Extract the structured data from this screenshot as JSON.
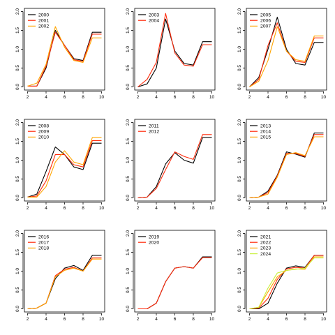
{
  "colors": {
    "black": "#000000",
    "red": "#ff2a0a",
    "orange": "#ffa500",
    "yellow": "#f0f000",
    "yellowgreen": "#c8f03c"
  },
  "chart_data": [
    {
      "type": "line",
      "x": [
        2,
        3,
        4,
        5,
        6,
        7,
        8,
        9,
        10
      ],
      "xticks": [
        2,
        4,
        6,
        8,
        10
      ],
      "yticks": [
        "0.0",
        "0.5",
        "1.0",
        "1.5",
        "2.0"
      ],
      "xlim": [
        2,
        10
      ],
      "ylim": [
        0,
        2
      ],
      "legend": "top-left",
      "series": [
        {
          "name": "2000",
          "color": "#000000",
          "values": [
            0.02,
            0.02,
            0.5,
            1.5,
            1.1,
            0.75,
            0.7,
            1.45,
            1.45
          ]
        },
        {
          "name": "2001",
          "color": "#ff2a0a",
          "values": [
            0.02,
            0.02,
            0.55,
            1.45,
            1.1,
            0.72,
            0.68,
            1.4,
            1.4
          ]
        },
        {
          "name": "2002",
          "color": "#ffa500",
          "values": [
            0.02,
            0.1,
            0.6,
            1.6,
            1.05,
            0.7,
            0.65,
            1.3,
            1.3
          ]
        }
      ]
    },
    {
      "type": "line",
      "x": [
        2,
        3,
        4,
        5,
        6,
        7,
        8,
        9,
        10
      ],
      "xticks": [
        2,
        4,
        6,
        8,
        10
      ],
      "yticks": [
        "0.0",
        "0.5",
        "1.0",
        "1.5",
        "2.0"
      ],
      "xlim": [
        2,
        10
      ],
      "ylim": [
        0,
        2
      ],
      "legend": "top-left",
      "series": [
        {
          "name": "2003",
          "color": "#000000",
          "values": [
            0.0,
            0.08,
            0.5,
            1.8,
            0.95,
            0.62,
            0.58,
            1.2,
            1.2
          ]
        },
        {
          "name": "2004",
          "color": "#ff2a0a",
          "values": [
            0.0,
            0.2,
            0.65,
            1.95,
            0.9,
            0.58,
            0.55,
            1.12,
            1.12
          ]
        }
      ]
    },
    {
      "type": "line",
      "x": [
        2,
        3,
        4,
        5,
        6,
        7,
        8,
        9,
        10
      ],
      "xticks": [
        2,
        4,
        6,
        8,
        10
      ],
      "yticks": [
        "0.0",
        "0.5",
        "1.0",
        "1.5",
        "2.0"
      ],
      "xlim": [
        2,
        10
      ],
      "ylim": [
        0,
        2
      ],
      "legend": "top-left",
      "series": [
        {
          "name": "2005",
          "color": "#000000",
          "values": [
            0.0,
            0.25,
            1.0,
            1.85,
            1.0,
            0.62,
            0.58,
            1.18,
            1.18
          ]
        },
        {
          "name": "2006",
          "color": "#ff2a0a",
          "values": [
            0.0,
            0.2,
            1.1,
            1.7,
            0.95,
            0.68,
            0.65,
            1.3,
            1.3
          ]
        },
        {
          "name": "2007",
          "color": "#ffa500",
          "values": [
            0.0,
            0.15,
            0.7,
            1.6,
            0.95,
            0.72,
            0.68,
            1.35,
            1.35
          ]
        }
      ]
    },
    {
      "type": "line",
      "x": [
        2,
        3,
        4,
        5,
        6,
        7,
        8,
        9,
        10
      ],
      "xticks": [
        2,
        4,
        6,
        8,
        10
      ],
      "yticks": [
        "0.0",
        "0.5",
        "1.0",
        "1.5",
        "2.0"
      ],
      "xlim": [
        2,
        10
      ],
      "ylim": [
        0,
        2
      ],
      "legend": "top-left",
      "series": [
        {
          "name": "2008",
          "color": "#000000",
          "values": [
            0.02,
            0.1,
            0.7,
            1.35,
            1.15,
            0.82,
            0.75,
            1.45,
            1.45
          ]
        },
        {
          "name": "2009",
          "color": "#ff2a0a",
          "values": [
            0.02,
            0.05,
            0.45,
            1.15,
            1.15,
            0.88,
            0.82,
            1.52,
            1.52
          ]
        },
        {
          "name": "2010",
          "color": "#ffa500",
          "values": [
            0.02,
            0.02,
            0.3,
            0.95,
            1.25,
            0.95,
            0.88,
            1.6,
            1.6
          ]
        }
      ]
    },
    {
      "type": "line",
      "x": [
        2,
        3,
        4,
        5,
        6,
        7,
        8,
        9,
        10
      ],
      "xticks": [
        2,
        4,
        6,
        8,
        10
      ],
      "yticks": [
        "0.0",
        "0.5",
        "1.0",
        "1.5",
        "2.0"
      ],
      "xlim": [
        2,
        10
      ],
      "ylim": [
        0,
        2
      ],
      "legend": "top-left",
      "series": [
        {
          "name": "2011",
          "color": "#000000",
          "values": [
            0.0,
            0.02,
            0.3,
            0.9,
            1.2,
            1.0,
            0.92,
            1.6,
            1.6
          ]
        },
        {
          "name": "2012",
          "color": "#ff2a0a",
          "values": [
            0.0,
            0.02,
            0.25,
            0.75,
            1.22,
            1.1,
            1.02,
            1.68,
            1.68
          ]
        }
      ]
    },
    {
      "type": "line",
      "x": [
        2,
        3,
        4,
        5,
        6,
        7,
        8,
        9,
        10
      ],
      "xticks": [
        2,
        4,
        6,
        8,
        10
      ],
      "yticks": [
        "0.0",
        "0.5",
        "1.0",
        "1.5",
        "2.0"
      ],
      "xlim": [
        2,
        10
      ],
      "ylim": [
        0,
        2
      ],
      "legend": "top-left",
      "series": [
        {
          "name": "2013",
          "color": "#000000",
          "values": [
            0.0,
            0.02,
            0.18,
            0.6,
            1.22,
            1.16,
            1.08,
            1.72,
            1.72
          ]
        },
        {
          "name": "2014",
          "color": "#ff2a0a",
          "values": [
            0.0,
            0.02,
            0.14,
            0.58,
            1.18,
            1.18,
            1.1,
            1.68,
            1.68
          ]
        },
        {
          "name": "2015",
          "color": "#ffa500",
          "values": [
            0.0,
            0.02,
            0.1,
            0.55,
            1.15,
            1.2,
            1.12,
            1.62,
            1.62
          ]
        }
      ]
    },
    {
      "type": "line",
      "x": [
        2,
        3,
        4,
        5,
        6,
        7,
        8,
        9,
        10
      ],
      "xticks": [
        2,
        4,
        6,
        8,
        10
      ],
      "yticks": [
        "0.0",
        "0.5",
        "1.0",
        "1.5",
        "2.0"
      ],
      "xlim": [
        2,
        10
      ],
      "ylim": [
        0,
        2
      ],
      "legend": "top-left",
      "series": [
        {
          "name": "2016",
          "color": "#000000",
          "values": [
            0.0,
            0.02,
            0.15,
            0.8,
            1.08,
            1.15,
            1.02,
            1.42,
            1.42
          ]
        },
        {
          "name": "2017",
          "color": "#ff2a0a",
          "values": [
            0.0,
            0.02,
            0.15,
            0.88,
            1.05,
            1.1,
            1.0,
            1.35,
            1.35
          ]
        },
        {
          "name": "2018",
          "color": "#ffa500",
          "values": [
            0.0,
            0.02,
            0.15,
            0.85,
            1.02,
            1.08,
            1.0,
            1.32,
            1.32
          ]
        }
      ]
    },
    {
      "type": "line",
      "x": [
        2,
        3,
        4,
        5,
        6,
        7,
        8,
        9,
        10
      ],
      "xticks": [
        2,
        4,
        6,
        8,
        10
      ],
      "yticks": [
        "0.0",
        "0.5",
        "1.0",
        "1.5",
        "2.0"
      ],
      "xlim": [
        2,
        10
      ],
      "ylim": [
        0,
        2
      ],
      "legend": "top-left",
      "series": [
        {
          "name": "2019",
          "color": "#000000",
          "values": [
            0.0,
            0.0,
            0.15,
            0.72,
            1.08,
            1.12,
            1.08,
            1.38,
            1.38
          ]
        },
        {
          "name": "2020",
          "color": "#ff2a0a",
          "values": [
            0.0,
            0.0,
            0.15,
            0.72,
            1.08,
            1.12,
            1.08,
            1.36,
            1.36
          ]
        }
      ]
    },
    {
      "type": "line",
      "x": [
        2,
        3,
        4,
        5,
        6,
        7,
        8,
        9,
        10
      ],
      "xticks": [
        2,
        4,
        6,
        8,
        10
      ],
      "yticks": [
        "0.0",
        "0.5",
        "1.0",
        "1.5",
        "2.0"
      ],
      "xlim": [
        2,
        10
      ],
      "ylim": [
        0,
        2
      ],
      "legend": "top-left",
      "series": [
        {
          "name": "2021",
          "color": "#000000",
          "values": [
            0.0,
            0.0,
            0.15,
            0.68,
            1.08,
            1.14,
            1.1,
            1.42,
            1.42
          ]
        },
        {
          "name": "2022",
          "color": "#ff2a0a",
          "values": [
            0.0,
            0.02,
            0.28,
            0.78,
            1.06,
            1.1,
            1.08,
            1.42,
            1.42
          ]
        },
        {
          "name": "2023",
          "color": "#ffa500",
          "values": [
            0.0,
            0.04,
            0.45,
            0.85,
            1.02,
            1.06,
            1.05,
            1.38,
            1.38
          ]
        },
        {
          "name": "2024",
          "color": "#c8f03c",
          "values": [
            0.0,
            0.04,
            0.55,
            0.95,
            1.02,
            1.05,
            1.08,
            1.35,
            1.35
          ]
        }
      ]
    }
  ]
}
